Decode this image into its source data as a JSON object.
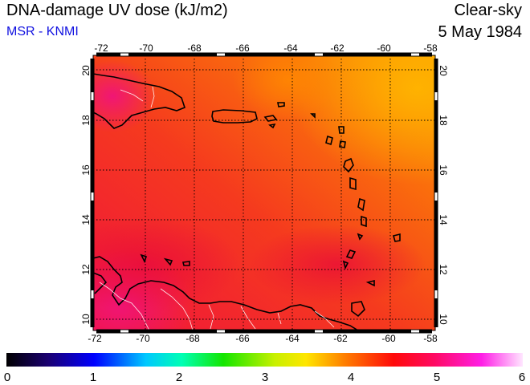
{
  "header": {
    "title": "DNA-damage UV dose (kJ/m2)",
    "subtitle": "MSR - KNMI",
    "sky": "Clear-sky",
    "date": "5 May 1984"
  },
  "map": {
    "lon_range": [
      -72,
      -58
    ],
    "lat_range": [
      9.5,
      20.5
    ],
    "lon_ticks": [
      "-72",
      "-70",
      "-68",
      "-66",
      "-64",
      "-62",
      "-60",
      "-58"
    ],
    "lat_ticks": [
      "20",
      "18",
      "16",
      "14",
      "12",
      "10"
    ],
    "grid": true
  },
  "colorbar": {
    "range": [
      0,
      6
    ],
    "labels": [
      "0",
      "1",
      "2",
      "3",
      "4",
      "5",
      "6"
    ]
  }
}
